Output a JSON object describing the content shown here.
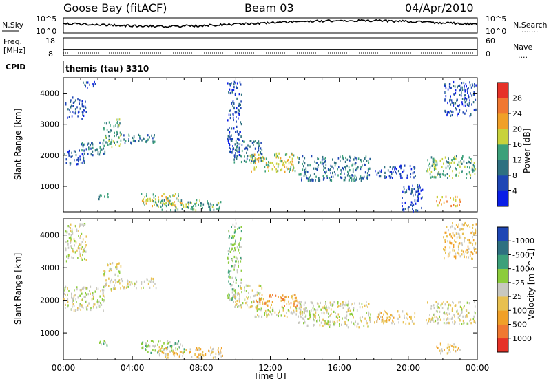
{
  "header": {
    "station": "Goose Bay (fitACF)",
    "beam": "Beam 03",
    "date": "04/Apr/2010"
  },
  "noise_panel": {
    "left_label": "N.Sky",
    "right_label": "N.Search",
    "left_ticks": [
      "10^5",
      "10^0"
    ],
    "right_ticks": [
      "10^5",
      "10^0"
    ],
    "legend_sample": "......."
  },
  "freq_panel": {
    "left_label_top": "Freq.",
    "left_label_bottom": "[MHz]",
    "right_label": "Nave",
    "left_ticks": [
      "18",
      "8"
    ],
    "right_ticks": [
      "60",
      "0"
    ],
    "legend_sample": "...."
  },
  "cpid": {
    "label": "CPID",
    "value": "themis (tau) 3310"
  },
  "chart_data": [
    {
      "type": "heatmap",
      "parameter": "Power",
      "xlabel": "",
      "ylabel": "Slant Range [km]",
      "x_ticks": [
        "00:00",
        "04:00",
        "08:00",
        "12:00",
        "16:00",
        "20:00",
        "00:00"
      ],
      "y_ticks": [
        1000,
        2000,
        3000,
        4000
      ],
      "ylim": [
        180,
        4500
      ],
      "colorbar": {
        "label": "Power [dB]",
        "ticks": [
          "4",
          "8",
          "12",
          "16",
          "20",
          "24",
          "28"
        ],
        "colors": [
          "#0a1ee6",
          "#1e46b4",
          "#2e7080",
          "#3ca07a",
          "#c8d23c",
          "#f0a028",
          "#f07832",
          "#e63228"
        ]
      },
      "regions": [
        {
          "t0": 0.1,
          "t1": 1.3,
          "r0": 3200,
          "r1": 3900,
          "level": 1
        },
        {
          "t0": 1.0,
          "t1": 2.0,
          "r0": 4200,
          "r1": 4400,
          "level": 1
        },
        {
          "t0": 0.0,
          "t1": 1.2,
          "r0": 1700,
          "r1": 2200,
          "level": 1
        },
        {
          "t0": 1.0,
          "t1": 2.4,
          "r0": 2000,
          "r1": 2450,
          "level": 2
        },
        {
          "t0": 2.3,
          "t1": 3.3,
          "r0": 2300,
          "r1": 3200,
          "level": 3
        },
        {
          "t0": 3.3,
          "t1": 5.4,
          "r0": 2400,
          "r1": 2700,
          "level": 2
        },
        {
          "t0": 2.0,
          "t1": 2.6,
          "r0": 600,
          "r1": 800,
          "level": 3
        },
        {
          "t0": 4.5,
          "t1": 7.0,
          "r0": 400,
          "r1": 800,
          "level": 4
        },
        {
          "t0": 5.4,
          "t1": 9.2,
          "r0": 250,
          "r1": 600,
          "level": 3
        },
        {
          "t0": 9.5,
          "t1": 10.3,
          "r0": 2000,
          "r1": 4400,
          "level": 1
        },
        {
          "t0": 9.8,
          "t1": 11.5,
          "r0": 1800,
          "r1": 2500,
          "level": 2
        },
        {
          "t0": 10.8,
          "t1": 13.6,
          "r0": 1500,
          "r1": 2100,
          "level": 4
        },
        {
          "t0": 13.6,
          "t1": 17.8,
          "r0": 1200,
          "r1": 2000,
          "level": 2
        },
        {
          "t0": 18.0,
          "t1": 20.4,
          "r0": 1300,
          "r1": 1700,
          "level": 1
        },
        {
          "t0": 19.6,
          "t1": 20.8,
          "r0": 200,
          "r1": 1100,
          "level": 1
        },
        {
          "t0": 21.0,
          "t1": 23.9,
          "r0": 1300,
          "r1": 2000,
          "level": 3
        },
        {
          "t0": 22.0,
          "t1": 23.9,
          "r0": 3300,
          "r1": 4400,
          "level": 1
        },
        {
          "t0": 21.6,
          "t1": 23.0,
          "r0": 400,
          "r1": 700,
          "level": 5
        }
      ]
    },
    {
      "type": "heatmap",
      "parameter": "Velocity",
      "xlabel": "Time UT",
      "ylabel": "Slant Range [km]",
      "x_ticks": [
        "00:00",
        "04:00",
        "08:00",
        "12:00",
        "16:00",
        "20:00",
        "00:00"
      ],
      "y_ticks": [
        1000,
        2000,
        3000,
        4000
      ],
      "ylim": [
        180,
        4500
      ],
      "colorbar": {
        "label": "Velocity [m s^-1]",
        "ticks": [
          "1000",
          "500",
          "100",
          "25",
          "-25",
          "-100",
          "-500",
          "-1000"
        ],
        "colors": [
          "#1e46b4",
          "#2e7080",
          "#3ca07a",
          "#8ccc3c",
          "#c8c8c0",
          "#e8c050",
          "#f0a028",
          "#f07832",
          "#e63228"
        ]
      },
      "regions": [
        {
          "t0": 0.1,
          "t1": 1.3,
          "r0": 3200,
          "r1": 4400,
          "level": 4
        },
        {
          "t0": 0.0,
          "t1": 2.4,
          "r0": 1700,
          "r1": 2450,
          "level": 4
        },
        {
          "t0": 2.3,
          "t1": 3.3,
          "r0": 2300,
          "r1": 3200,
          "level": 4
        },
        {
          "t0": 3.3,
          "t1": 5.4,
          "r0": 2400,
          "r1": 2700,
          "level": 4
        },
        {
          "t0": 2.0,
          "t1": 2.6,
          "r0": 600,
          "r1": 800,
          "level": 3
        },
        {
          "t0": 4.5,
          "t1": 7.0,
          "r0": 400,
          "r1": 800,
          "level": 3
        },
        {
          "t0": 5.4,
          "t1": 9.2,
          "r0": 250,
          "r1": 600,
          "level": 5
        },
        {
          "t0": 9.5,
          "t1": 10.3,
          "r0": 2000,
          "r1": 4400,
          "level": 3
        },
        {
          "t0": 9.8,
          "t1": 11.5,
          "r0": 1800,
          "r1": 2500,
          "level": 4
        },
        {
          "t0": 10.8,
          "t1": 13.6,
          "r0": 1800,
          "r1": 2200,
          "level": 6
        },
        {
          "t0": 11.0,
          "t1": 14.0,
          "r0": 1500,
          "r1": 1800,
          "level": 4
        },
        {
          "t0": 13.6,
          "t1": 17.8,
          "r0": 1200,
          "r1": 2000,
          "level": 4
        },
        {
          "t0": 18.0,
          "t1": 20.4,
          "r0": 1300,
          "r1": 1700,
          "level": 5
        },
        {
          "t0": 21.0,
          "t1": 23.9,
          "r0": 1300,
          "r1": 2000,
          "level": 4
        },
        {
          "t0": 22.0,
          "t1": 23.9,
          "r0": 3300,
          "r1": 4400,
          "level": 5
        },
        {
          "t0": 21.6,
          "t1": 23.0,
          "r0": 400,
          "r1": 700,
          "level": 5
        }
      ]
    }
  ]
}
